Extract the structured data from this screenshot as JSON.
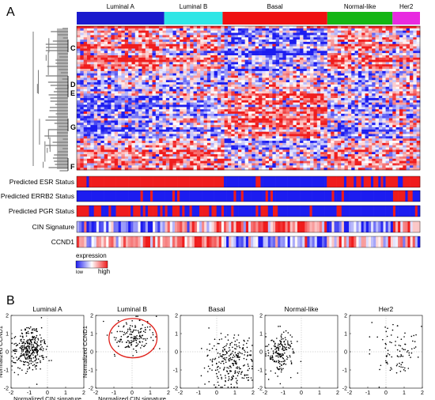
{
  "panel_a": {
    "label": "A",
    "subtypes": [
      {
        "name": "Luminal A",
        "color": "#1a1acd",
        "frac": 0.255
      },
      {
        "name": "Luminal B",
        "color": "#2fe6e6",
        "frac": 0.17
      },
      {
        "name": "Basal",
        "color": "#ef1010",
        "frac": 0.305
      },
      {
        "name": "Normal-like",
        "color": "#14b514",
        "frac": 0.19
      },
      {
        "name": "Her2",
        "color": "#e82ae0",
        "frac": 0.08
      }
    ],
    "clusters": [
      "C",
      "D",
      "E",
      "G",
      "F"
    ],
    "tracks": [
      {
        "label": "Predicted ESR Status",
        "pattern": "esr"
      },
      {
        "label": "Predicted ERRB2 Status",
        "pattern": "errb2"
      },
      {
        "label": "Predicted PGR Status",
        "pattern": "pgr"
      },
      {
        "label": "CIN Signature",
        "pattern": "cin"
      },
      {
        "label": "CCND1",
        "pattern": "ccnd1"
      }
    ],
    "legend": {
      "title": "expression",
      "low": "low",
      "high": "high"
    },
    "colors": {
      "low": "#1c1cf0",
      "mid": "#ffffff",
      "high": "#f01c1c",
      "dendrogram": "#7a7a7a"
    }
  },
  "panel_b": {
    "label": "B",
    "xlabel": "Normalized CIN signature",
    "ylabel": "Normalized CCND1"
  },
  "chart_data": [
    {
      "type": "scatter",
      "title": "Luminal A",
      "xlim": [
        -2,
        2
      ],
      "ylim": [
        -2,
        2
      ],
      "xticks": [
        -2,
        -1,
        0,
        1,
        2
      ],
      "yticks": [
        -2,
        -1,
        0,
        1,
        2
      ],
      "center": [
        -1.0,
        0.2
      ],
      "spread": [
        0.45,
        0.55
      ],
      "n": 320,
      "highlight_circle": false,
      "xlabel": "Normalized CIN signature",
      "ylabel": "Normalized CCND1"
    },
    {
      "type": "scatter",
      "title": "Luminal B",
      "xlim": [
        -2,
        2
      ],
      "ylim": [
        -2,
        2
      ],
      "xticks": [
        -2,
        -1,
        0,
        1,
        2
      ],
      "yticks": [
        -2,
        -1,
        0,
        1,
        2
      ],
      "center": [
        0.0,
        0.8
      ],
      "spread": [
        0.55,
        0.45
      ],
      "n": 150,
      "highlight_circle": true,
      "xlabel": "Normalized CIN signature",
      "ylabel": "Normalized CCND1"
    },
    {
      "type": "scatter",
      "title": "Basal",
      "xlim": [
        -2,
        2
      ],
      "ylim": [
        -2,
        2
      ],
      "xticks": [
        -2,
        -1,
        0,
        1,
        2
      ],
      "yticks": [
        -2,
        -1,
        0,
        1,
        2
      ],
      "center": [
        0.8,
        -0.5
      ],
      "spread": [
        0.65,
        0.75
      ],
      "n": 260,
      "highlight_circle": false
    },
    {
      "type": "scatter",
      "title": "Normal-like",
      "xlim": [
        -2,
        2
      ],
      "ylim": [
        -2,
        2
      ],
      "xticks": [
        -2,
        -1,
        0,
        1,
        2
      ],
      "yticks": [
        -2,
        -1,
        0,
        1,
        2
      ],
      "center": [
        -1.1,
        0.0
      ],
      "spread": [
        0.35,
        0.6
      ],
      "n": 180,
      "highlight_circle": false
    },
    {
      "type": "scatter",
      "title": "Her2",
      "xlim": [
        -2,
        2
      ],
      "ylim": [
        -2,
        2
      ],
      "xticks": [
        -2,
        -1,
        0,
        1,
        2
      ],
      "yticks": [
        -2,
        -1,
        0,
        1,
        2
      ],
      "center": [
        0.6,
        0.0
      ],
      "spread": [
        0.55,
        0.75
      ],
      "n": 90,
      "highlight_circle": false
    }
  ]
}
